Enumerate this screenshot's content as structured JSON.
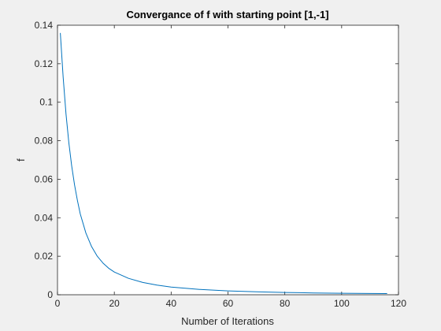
{
  "chart_data": {
    "type": "line",
    "title": "Convergance of f with starting point [1,-1]",
    "xlabel": "Number of Iterations",
    "ylabel": "f",
    "xlim": [
      0,
      120
    ],
    "ylim": [
      0,
      0.14
    ],
    "xticks": [
      0,
      20,
      40,
      60,
      80,
      100,
      120
    ],
    "xtick_labels": [
      "0",
      "20",
      "40",
      "60",
      "80",
      "100",
      "120"
    ],
    "yticks": [
      0,
      0.02,
      0.04,
      0.06,
      0.08,
      0.1,
      0.12,
      0.14
    ],
    "ytick_labels": [
      "0",
      "0.02",
      "0.04",
      "0.06",
      "0.08",
      "0.1",
      "0.12",
      "0.14"
    ],
    "grid": false,
    "legend": "none",
    "series": [
      {
        "color": "#0072bd",
        "x": [
          1,
          2,
          3,
          4,
          5,
          6,
          7,
          8,
          10,
          12,
          14,
          16,
          18,
          20,
          25,
          30,
          35,
          40,
          50,
          60,
          70,
          80,
          90,
          100,
          110,
          116
        ],
        "y": [
          0.136,
          0.113,
          0.094,
          0.079,
          0.067,
          0.057,
          0.049,
          0.042,
          0.032,
          0.025,
          0.02,
          0.0165,
          0.0138,
          0.0118,
          0.0085,
          0.0064,
          0.005,
          0.004,
          0.0028,
          0.002,
          0.0015,
          0.0012,
          0.00095,
          0.00078,
          0.00065,
          0.0006
        ]
      }
    ]
  }
}
